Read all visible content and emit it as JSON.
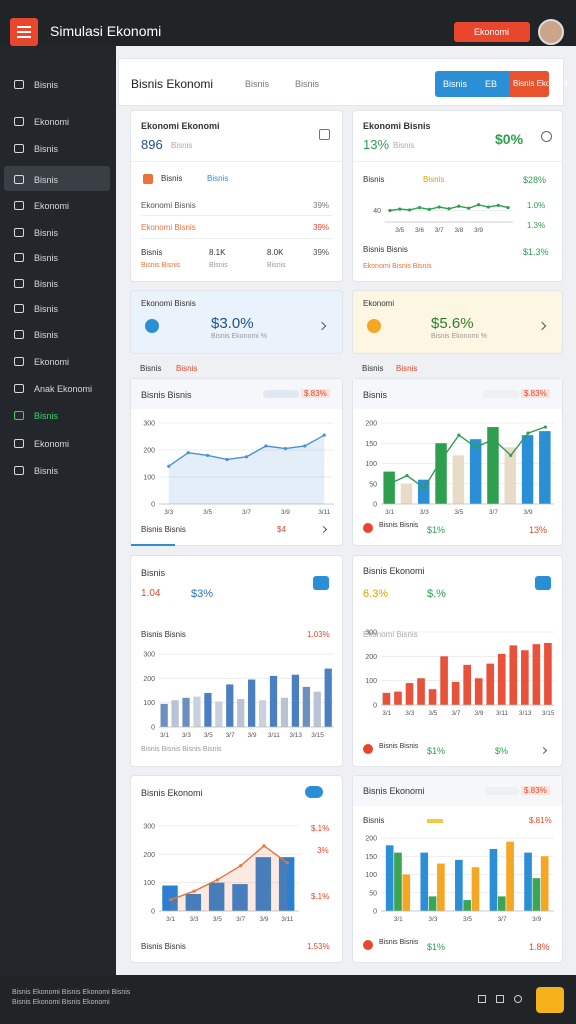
{
  "topbar": {
    "title": "Simulasi Ekonomi",
    "button": "Ekonomi"
  },
  "sidebar": {
    "items": [
      "Bisnis",
      "Ekonomi",
      "Bisnis",
      "Bisnis",
      "Ekonomi",
      "Bisnis",
      "Bisnis",
      "Bisnis",
      "Bisnis",
      "Bisnis",
      "Ekonomi",
      "Anak Ekonomi",
      "Bisnis",
      "Ekonomi",
      "Bisnis"
    ],
    "active": 3,
    "highlight": 12
  },
  "header": {
    "title": "Bisnis Ekonomi",
    "tabs": [
      "Bisnis",
      "Bisnis"
    ],
    "buttons": [
      "Bisnis",
      "EB",
      "Bisnis Ekonomi"
    ]
  },
  "stat_left": {
    "title": "Ekonomi Ekonomi",
    "value": "896",
    "sub": "Bisnis",
    "row": [
      "Bisnis",
      "Bisnis"
    ],
    "lines": [
      [
        "Ekonomi Bisnis",
        "39%"
      ],
      [
        "Ekonomi Bisnis",
        "39%"
      ]
    ],
    "bottom": [
      "Bisnis",
      "8.1K",
      "8.0K",
      "39%"
    ],
    "bottom_sub": [
      "Bisnis Bisnis",
      "Bisnis",
      "Bisnis"
    ]
  },
  "stat_right": {
    "title": "Ekonomi Bisnis",
    "value": "13%",
    "sub": "Bisnis",
    "change": "$0%",
    "row": [
      "Bisnis",
      "Bisnis"
    ],
    "row_value": "$28%",
    "side": [
      "1.0%",
      "1.3%"
    ],
    "bottom": "Bisnis Bisnis",
    "bottom_sub": "Ekonomi Bisnis Bisnis",
    "bottom_value": "$1.3%"
  },
  "kpis": [
    {
      "title": "Ekonomi Bisnis",
      "value": "$3.0%",
      "sub": "Bisnis Ekonomi %"
    },
    {
      "title": "Ekonomi",
      "value": "$5.6%",
      "sub": "Bisnis Ekonomi %"
    }
  ],
  "sections": [
    [
      "Bisnis",
      "Bisnis"
    ],
    [
      "Bisnis",
      "Bisnis"
    ]
  ],
  "cards": [
    {
      "title": "Bisnis Bisnis",
      "badge": "$.83%",
      "foot": "Bisnis Bisnis",
      "foot_value": "$4"
    },
    {
      "title": "Bisnis",
      "badge": "$.83%",
      "foot": "Bisnis Bisnis",
      "foot_value": "$1%",
      "foot_end": "13%"
    },
    {
      "title": "Bisnis",
      "value_a": "1.04",
      "value_b": "$3%",
      "sub": "Bisnis Bisnis",
      "sub_value": "1.03%",
      "foot": "Bisnis Bisnis Bisnis Bisnis"
    },
    {
      "title": "Bisnis Ekonomi",
      "value_a": "6.3%",
      "value_b": "$.%",
      "sub": "Ekonomi Bisnis",
      "foot": "Bisnis Bisnis",
      "foot_value": "$1%",
      "foot_end": "$%"
    },
    {
      "title": "Bisnis Ekonomi",
      "side": [
        "$.1%",
        "3%",
        "$.1%"
      ],
      "foot": "Bisnis Bisnis",
      "foot_value": "1.53%"
    },
    {
      "title": "Bisnis Ekonomi",
      "badge": "$.83%",
      "sub": "Bisnis",
      "sub_value": "$.81%",
      "foot": "Bisnis Bisnis",
      "foot_value": "$1%",
      "foot_end": "1.8%"
    }
  ],
  "charts": [
    {
      "type": "line",
      "categories": [
        null,
        "3/5",
        null,
        "3/6",
        null,
        "3/7",
        null,
        "3/8",
        null,
        "3/9",
        null,
        null,
        null
      ],
      "ylim": [
        0,
        80
      ],
      "yticks": [
        40
      ],
      "series": [
        {
          "kind": "line",
          "color": "#2e9e4f",
          "values": [
            40,
            45,
            42,
            50,
            44,
            52,
            46,
            55,
            48,
            60,
            52,
            58,
            50
          ]
        }
      ]
    },
    {
      "type": "line",
      "categories": [
        "3/3",
        null,
        "3/5",
        null,
        "3/7",
        null,
        "3/9",
        null,
        "3/11"
      ],
      "ylim": [
        0,
        300
      ],
      "yticks": [
        0,
        100,
        200,
        300
      ],
      "series": [
        {
          "kind": "area",
          "color": "#4a90d9",
          "values": [
            140,
            190,
            180,
            165,
            175,
            215,
            205,
            215,
            255
          ]
        }
      ]
    },
    {
      "type": "combo",
      "categories": [
        "3/1",
        null,
        "3/3",
        null,
        "3/5",
        null,
        "3/7",
        null,
        "3/9",
        null
      ],
      "ylim": [
        0,
        200
      ],
      "yticks": [
        0,
        50,
        100,
        150,
        200
      ],
      "series": [
        {
          "kind": "bar",
          "colors": [
            "#2e9e4f",
            "#e8dcc8",
            "#2b8fd6",
            "#2e9e4f",
            "#e8dcc8",
            "#2b8fd6",
            "#2e9e4f",
            "#e8dcc8",
            "#2b8fd6",
            "#2b8fd6"
          ],
          "values": [
            80,
            50,
            60,
            150,
            120,
            160,
            190,
            140,
            170,
            180
          ]
        },
        {
          "kind": "line",
          "color": "#2e9e4f",
          "values": [
            50,
            70,
            40,
            110,
            170,
            140,
            160,
            120,
            175,
            190
          ]
        }
      ]
    },
    {
      "type": "bar",
      "categories": [
        "3/1",
        null,
        "3/3",
        null,
        "3/5",
        null,
        "3/7",
        null,
        "3/9",
        null,
        "3/11",
        null,
        "3/13",
        null,
        "3/15",
        null
      ],
      "ylim": [
        0,
        300
      ],
      "yticks": [
        0,
        100,
        200,
        300
      ],
      "series": [
        {
          "kind": "bar",
          "colors": [
            "#6b8fbf",
            "#b8c4d4",
            "#6b8fbf",
            "#c9d1dc",
            "#4a7fc1",
            "#c9d1dc",
            "#4a7fc1",
            "#b8c4d4",
            "#4a7fc1",
            "#c9d1dc",
            "#4a7fc1",
            "#b8c4d4",
            "#4a7fc1",
            "#6b8fbf",
            "#b8c4d4",
            "#4a7fc1"
          ],
          "values": [
            95,
            110,
            120,
            125,
            140,
            105,
            175,
            115,
            195,
            110,
            210,
            120,
            215,
            165,
            145,
            240
          ]
        }
      ]
    },
    {
      "type": "bar",
      "categories": [
        "3/1",
        null,
        "3/3",
        null,
        "3/5",
        null,
        "3/7",
        null,
        "3/9",
        null,
        "3/11",
        null,
        "3/13",
        null,
        "3/15"
      ],
      "ylim": [
        0,
        300
      ],
      "yticks": [
        0,
        100,
        200,
        300
      ],
      "series": [
        {
          "kind": "bar",
          "color": "#e8523b",
          "values": [
            50,
            55,
            90,
            110,
            65,
            200,
            95,
            165,
            110,
            170,
            210,
            245,
            225,
            250,
            255
          ]
        }
      ]
    },
    {
      "type": "combo",
      "categories": [
        "3/1",
        "3/3",
        "3/5",
        "3/7",
        "3/9",
        "3/11"
      ],
      "ylim": [
        0,
        300
      ],
      "yticks": [
        0,
        100,
        200,
        300
      ],
      "series": [
        {
          "kind": "area",
          "color": "#e8743b",
          "values": [
            40,
            70,
            110,
            160,
            230,
            170
          ]
        },
        {
          "kind": "bar",
          "color": "#2b7fd0",
          "values": [
            90,
            60,
            100,
            95,
            190,
            190
          ]
        }
      ]
    },
    {
      "type": "bar",
      "categories": [
        "3/1",
        "3/3",
        "3/5",
        "3/7",
        "3/9"
      ],
      "ylim": [
        0,
        200
      ],
      "yticks": [
        0,
        50,
        100,
        150,
        200
      ],
      "series": [
        {
          "kind": "bar",
          "color": "#2b8fd6",
          "values": [
            180,
            160,
            140,
            170,
            160
          ]
        },
        {
          "kind": "bar",
          "color": "#3aa655",
          "values": [
            160,
            40,
            30,
            40,
            90
          ]
        },
        {
          "kind": "bar",
          "color": "#f5a623",
          "values": [
            100,
            130,
            120,
            190,
            150
          ]
        }
      ]
    }
  ],
  "footer": {
    "lines": [
      "Bisnis Ekonomi Bisnis Ekonomi Bisnis",
      "Bisnis Ekonomi Bisnis Ekonomi"
    ]
  }
}
